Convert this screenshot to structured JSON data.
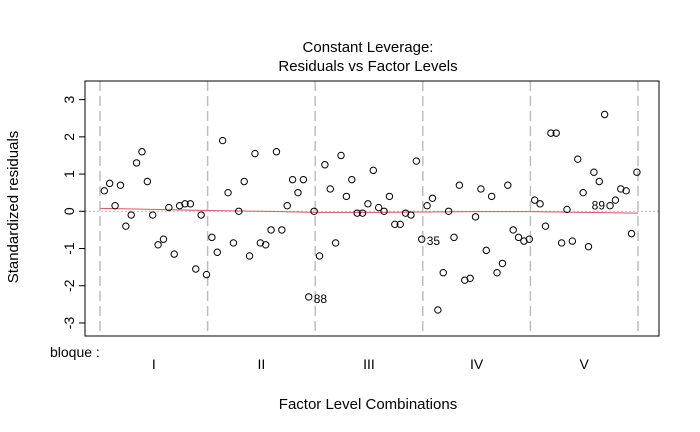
{
  "chart_data": {
    "type": "scatter",
    "title": [
      "Constant Leverage:",
      "Residuals vs Factor Levels"
    ],
    "xlabel": "Factor Level Combinations",
    "ylabel": "Standardized residuals",
    "factor_name": "bloque :",
    "ylim": [
      -3.35,
      3.5
    ],
    "yticks": [
      "-3",
      "-2",
      "-1",
      "0",
      "1",
      "2",
      "3"
    ],
    "levels": [
      "I",
      "II",
      "III",
      "IV",
      "V"
    ],
    "reference_line": 0,
    "point_color": "#000000",
    "smooth_color": "#df536b",
    "guide_color": "#bebebe",
    "labeled_points": [
      {
        "label": "35",
        "index": 59
      },
      {
        "label": "88",
        "index": 38
      },
      {
        "label": "89",
        "index": 94
      }
    ],
    "smooth": [
      [
        0,
        0.08
      ],
      [
        10,
        0.05
      ],
      [
        20,
        0.02
      ],
      [
        30,
        0.0
      ],
      [
        40,
        -0.03
      ],
      [
        50,
        -0.03
      ],
      [
        60,
        -0.02
      ],
      [
        70,
        -0.01
      ],
      [
        80,
        -0.01
      ],
      [
        90,
        -0.03
      ],
      [
        100,
        -0.05
      ]
    ],
    "x": [
      0.4,
      0.9,
      1.4,
      1.9,
      2.4,
      2.9,
      3.4,
      3.9,
      4.4,
      4.9,
      5.4,
      5.9,
      6.4,
      6.9,
      7.4,
      7.9,
      8.4,
      8.9,
      9.4,
      9.9,
      10.4,
      10.9,
      11.4,
      11.9,
      12.4,
      12.9,
      13.4,
      13.9,
      14.4,
      14.9,
      15.4,
      15.9,
      16.4,
      16.9,
      17.4,
      17.9,
      18.4,
      18.9,
      19.4,
      19.9,
      20.4,
      20.9,
      21.4,
      21.9,
      22.4,
      22.9,
      23.4,
      23.9,
      24.4,
      24.9,
      25.4,
      25.9,
      26.4,
      26.9,
      27.4,
      27.9,
      28.4,
      28.9,
      29.4,
      29.9,
      30.4,
      30.9,
      31.4,
      31.9,
      32.4,
      32.9,
      33.4,
      33.9,
      34.4,
      34.9,
      35.4,
      35.9,
      36.4,
      36.9,
      37.4,
      37.9,
      38.4,
      38.9,
      39.4,
      39.9,
      40.4,
      40.9,
      41.4,
      41.9,
      42.4,
      42.9,
      43.4,
      43.9,
      44.4,
      44.9,
      45.4,
      45.9,
      46.4,
      46.9,
      47.4,
      47.9,
      48.4,
      48.9,
      49.4,
      49.9
    ],
    "y": [
      0.55,
      0.75,
      0.15,
      0.7,
      -0.4,
      -0.1,
      1.3,
      1.6,
      0.8,
      -0.1,
      -0.9,
      -0.75,
      0.1,
      -1.15,
      0.15,
      0.2,
      0.2,
      -1.55,
      -0.1,
      -1.7,
      -0.7,
      -1.1,
      1.9,
      0.5,
      -0.85,
      0.0,
      0.8,
      -1.2,
      1.55,
      -0.85,
      -0.9,
      -0.5,
      1.6,
      -0.5,
      0.15,
      0.85,
      0.5,
      0.85,
      -2.3,
      0.0,
      -1.2,
      1.25,
      0.6,
      -0.85,
      1.5,
      0.4,
      0.85,
      -0.05,
      -0.05,
      0.2,
      1.1,
      0.1,
      0.0,
      0.4,
      -0.35,
      -0.35,
      -0.05,
      -0.1,
      1.35,
      -0.75,
      0.15,
      0.35,
      -2.65,
      -1.65,
      0.0,
      -0.7,
      0.7,
      -1.85,
      -1.8,
      -0.15,
      0.6,
      -1.05,
      0.4,
      -1.65,
      -1.4,
      0.7,
      -0.5,
      -0.7,
      -0.8,
      -0.75,
      0.3,
      0.2,
      -0.4,
      2.1,
      2.1,
      -0.85,
      0.05,
      -0.8,
      1.4,
      0.5,
      -0.95,
      1.05,
      0.8,
      2.6,
      0.15,
      0.3,
      0.6,
      0.55,
      -0.6,
      1.05
    ]
  }
}
